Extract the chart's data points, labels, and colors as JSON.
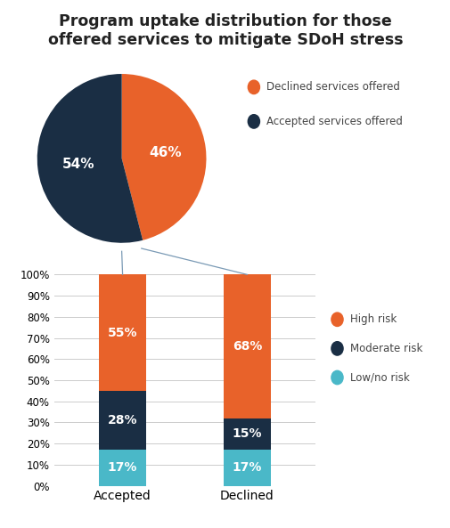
{
  "title": "Program uptake distribution for those\noffered services to mitigate SDoH stress",
  "title_fontsize": 12.5,
  "background_color": "#ffffff",
  "pie_values": [
    46,
    54
  ],
  "pie_labels": [
    "46%",
    "54%"
  ],
  "pie_colors": [
    "#e8622a",
    "#1a2e44"
  ],
  "pie_legend_labels": [
    "Declined services offered",
    "Accepted services offered"
  ],
  "bar_categories": [
    "Accepted",
    "Declined"
  ],
  "bar_low": [
    17,
    17
  ],
  "bar_moderate": [
    28,
    15
  ],
  "bar_high": [
    55,
    68
  ],
  "bar_colors": {
    "low": "#4ab8c8",
    "moderate": "#1a2e44",
    "high": "#e8622a"
  },
  "bar_legend_labels": [
    "High risk",
    "Moderate risk",
    "Low/no risk"
  ],
  "yticks": [
    0,
    10,
    20,
    30,
    40,
    50,
    60,
    70,
    80,
    90,
    100
  ],
  "ytick_labels": [
    "0%",
    "10%",
    "20%",
    "30%",
    "40%",
    "50%",
    "60%",
    "70%",
    "80%",
    "90%",
    "100%"
  ],
  "connector_color": "#7a9ab5",
  "text_color_white": "#ffffff",
  "bar_label_fontsize": 10
}
